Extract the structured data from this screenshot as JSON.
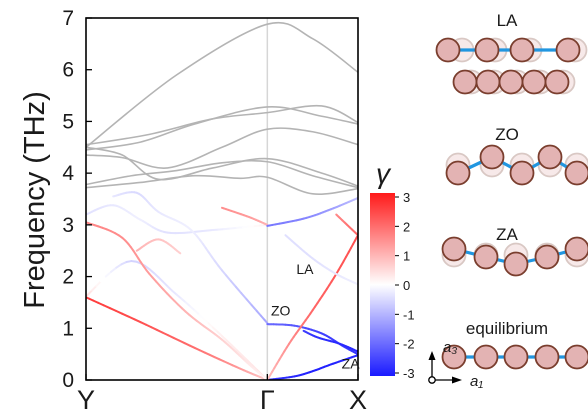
{
  "chart_data": {
    "type": "line",
    "ylabel": "Frequency (THz)",
    "ylim": [
      0,
      7
    ],
    "yticks": [
      0,
      1,
      2,
      3,
      4,
      5,
      6,
      7
    ],
    "x_ticks": [
      "Y",
      "Γ",
      "X"
    ],
    "x_segments": {
      "Y_to_Gamma": [
        0,
        1
      ],
      "Gamma_to_X": [
        1,
        1.5
      ]
    },
    "colorbar": {
      "label": "γ",
      "range": [
        -3,
        3
      ],
      "ticks": [
        "3",
        "2",
        "1",
        "0",
        "-1",
        "-2",
        "-3"
      ],
      "colors": {
        "high": "#ff1a1a",
        "mid": "#ffffff",
        "low": "#1a1aff"
      }
    },
    "band_labels": [
      {
        "text": "LA",
        "x": 1.16,
        "y": 2.05
      },
      {
        "text": "ZO",
        "x": 1.02,
        "y": 1.25
      },
      {
        "text": "ZA",
        "x": 1.41,
        "y": 0.22
      }
    ],
    "grey_bands": [
      {
        "x": [
          0,
          0.5,
          1,
          1.25,
          1.5
        ],
        "y": [
          4.5,
          5.9,
          6.88,
          6.6,
          5.95
        ]
      },
      {
        "x": [
          0,
          0.3,
          0.6,
          1,
          1.3,
          1.5
        ],
        "y": [
          4.45,
          4.6,
          4.95,
          5.28,
          5.1,
          4.95
        ]
      },
      {
        "x": [
          0,
          0.35,
          0.7,
          1,
          1.3,
          1.5
        ],
        "y": [
          4.55,
          4.75,
          5.05,
          5.17,
          5.3,
          4.98
        ]
      },
      {
        "x": [
          0,
          0.2,
          0.45,
          0.75,
          1,
          1.25,
          1.5
        ],
        "y": [
          4.35,
          4.3,
          4.1,
          4.5,
          4.85,
          4.8,
          4.55
        ]
      },
      {
        "x": [
          0,
          0.2,
          0.4,
          0.7,
          1,
          1.3,
          1.5
        ],
        "y": [
          4.5,
          4.35,
          3.88,
          4.1,
          4.28,
          4.0,
          3.75
        ]
      },
      {
        "x": [
          0,
          0.25,
          0.5,
          0.75,
          1,
          1.25,
          1.5
        ],
        "y": [
          3.78,
          3.95,
          4.05,
          4.2,
          4.22,
          3.95,
          3.72
        ]
      },
      {
        "x": [
          0,
          0.3,
          0.6,
          0.85,
          1,
          1.25,
          1.5
        ],
        "y": [
          3.72,
          3.82,
          3.95,
          3.9,
          3.92,
          3.6,
          3.7
        ]
      }
    ],
    "gamma_branches": [
      {
        "x": [
          0,
          0.3,
          0.6,
          0.85,
          1
        ],
        "y": [
          1.6,
          1.12,
          0.62,
          0.22,
          0
        ],
        "gamma": [
          2.6,
          2.3,
          1.9,
          1.3,
          0.6
        ]
      },
      {
        "x": [
          0,
          0.25,
          0.5,
          0.75,
          1
        ],
        "y": [
          1.62,
          2.3,
          1.65,
          0.85,
          0
        ],
        "gamma": [
          0.5,
          -0.6,
          -0.3,
          0.2,
          0.4
        ]
      },
      {
        "x": [
          0,
          0.2,
          0.35,
          0.55,
          0.75,
          0.9,
          1
        ],
        "y": [
          3.05,
          2.75,
          2.05,
          1.32,
          0.78,
          0.3,
          0
        ],
        "gamma": [
          1.6,
          1.5,
          1.3,
          1.0,
          0.6,
          0.3,
          0.1
        ]
      },
      {
        "x": [
          0,
          0.15,
          0.3,
          0.45,
          0.7,
          1
        ],
        "y": [
          3.2,
          3.38,
          3.1,
          2.85,
          2.9,
          3.0
        ],
        "gamma": [
          -0.4,
          -0.3,
          -0.2,
          -0.4,
          -0.3,
          0.2
        ]
      },
      {
        "x": [
          0.15,
          0.28,
          0.4,
          0.58,
          0.75,
          1
        ],
        "y": [
          3.55,
          3.62,
          3.25,
          2.9,
          2.12,
          1.1
        ],
        "gamma": [
          -0.3,
          -0.5,
          -0.3,
          -0.2,
          -0.5,
          -1.2
        ]
      },
      {
        "x": [
          0.28,
          0.4,
          0.52
        ],
        "y": [
          2.5,
          2.72,
          2.45
        ],
        "gamma": [
          1.0,
          0.8,
          0.6
        ]
      },
      {
        "x": [
          0.75,
          0.9,
          1
        ],
        "y": [
          3.33,
          3.15,
          3.0
        ],
        "gamma": [
          1.5,
          1.3,
          1.0
        ]
      }
    ],
    "x_branches": [
      {
        "x": [
          1,
          1.15,
          1.25,
          1.35,
          1.5
        ],
        "y": [
          0,
          0.07,
          0.17,
          0.3,
          0.48
        ],
        "gamma": [
          -2.6,
          -2.8,
          -2.9,
          -2.9,
          -2.8
        ]
      },
      {
        "x": [
          1,
          1.15,
          1.3,
          1.42,
          1.5
        ],
        "y": [
          1.08,
          1.05,
          0.9,
          0.65,
          0.5
        ],
        "gamma": [
          -1.9,
          -2.2,
          -2.5,
          -2.6,
          -2.7
        ]
      },
      {
        "x": [
          1.2,
          1.28,
          1.4,
          1.5
        ],
        "y": [
          0.95,
          0.82,
          0.7,
          0.55
        ],
        "gamma": [
          -2.5,
          -2.7,
          -2.8,
          -2.8
        ]
      },
      {
        "x": [
          1,
          1.12,
          1.25,
          1.38,
          1.5
        ],
        "y": [
          0,
          0.7,
          1.35,
          2.05,
          2.8
        ],
        "gamma": [
          0.8,
          1.5,
          2.0,
          2.2,
          2.3
        ]
      },
      {
        "x": [
          1,
          1.2,
          1.35,
          1.5
        ],
        "y": [
          2.98,
          3.12,
          3.3,
          3.52
        ],
        "gamma": [
          -1.8,
          -1.6,
          -1.3,
          -0.8
        ]
      },
      {
        "x": [
          1.1,
          1.25,
          1.38,
          1.5
        ],
        "y": [
          2.8,
          2.35,
          2.05,
          1.85
        ],
        "gamma": [
          -0.4,
          -0.4,
          -0.3,
          -0.2
        ]
      },
      {
        "x": [
          1.38,
          1.44,
          1.5
        ],
        "y": [
          3.2,
          3.0,
          2.8
        ],
        "gamma": [
          1.5,
          1.8,
          2.0
        ]
      }
    ],
    "mode_panels": [
      {
        "label": "LA",
        "pattern": "la"
      },
      {
        "label": "ZO",
        "pattern": "zo"
      },
      {
        "label": "ZA",
        "pattern": "za"
      },
      {
        "label": "equilibrium",
        "pattern": "eq"
      }
    ],
    "lattice_axes": {
      "vertical": "a₃",
      "horizontal": "a₁"
    },
    "style": {
      "grey_band": "#b4b4b4",
      "atom_fill": "#e3b3b3",
      "atom_edge": "#7a3e2e",
      "bond": "#2196e0",
      "gamma_divider": "#d6d6d6"
    }
  }
}
